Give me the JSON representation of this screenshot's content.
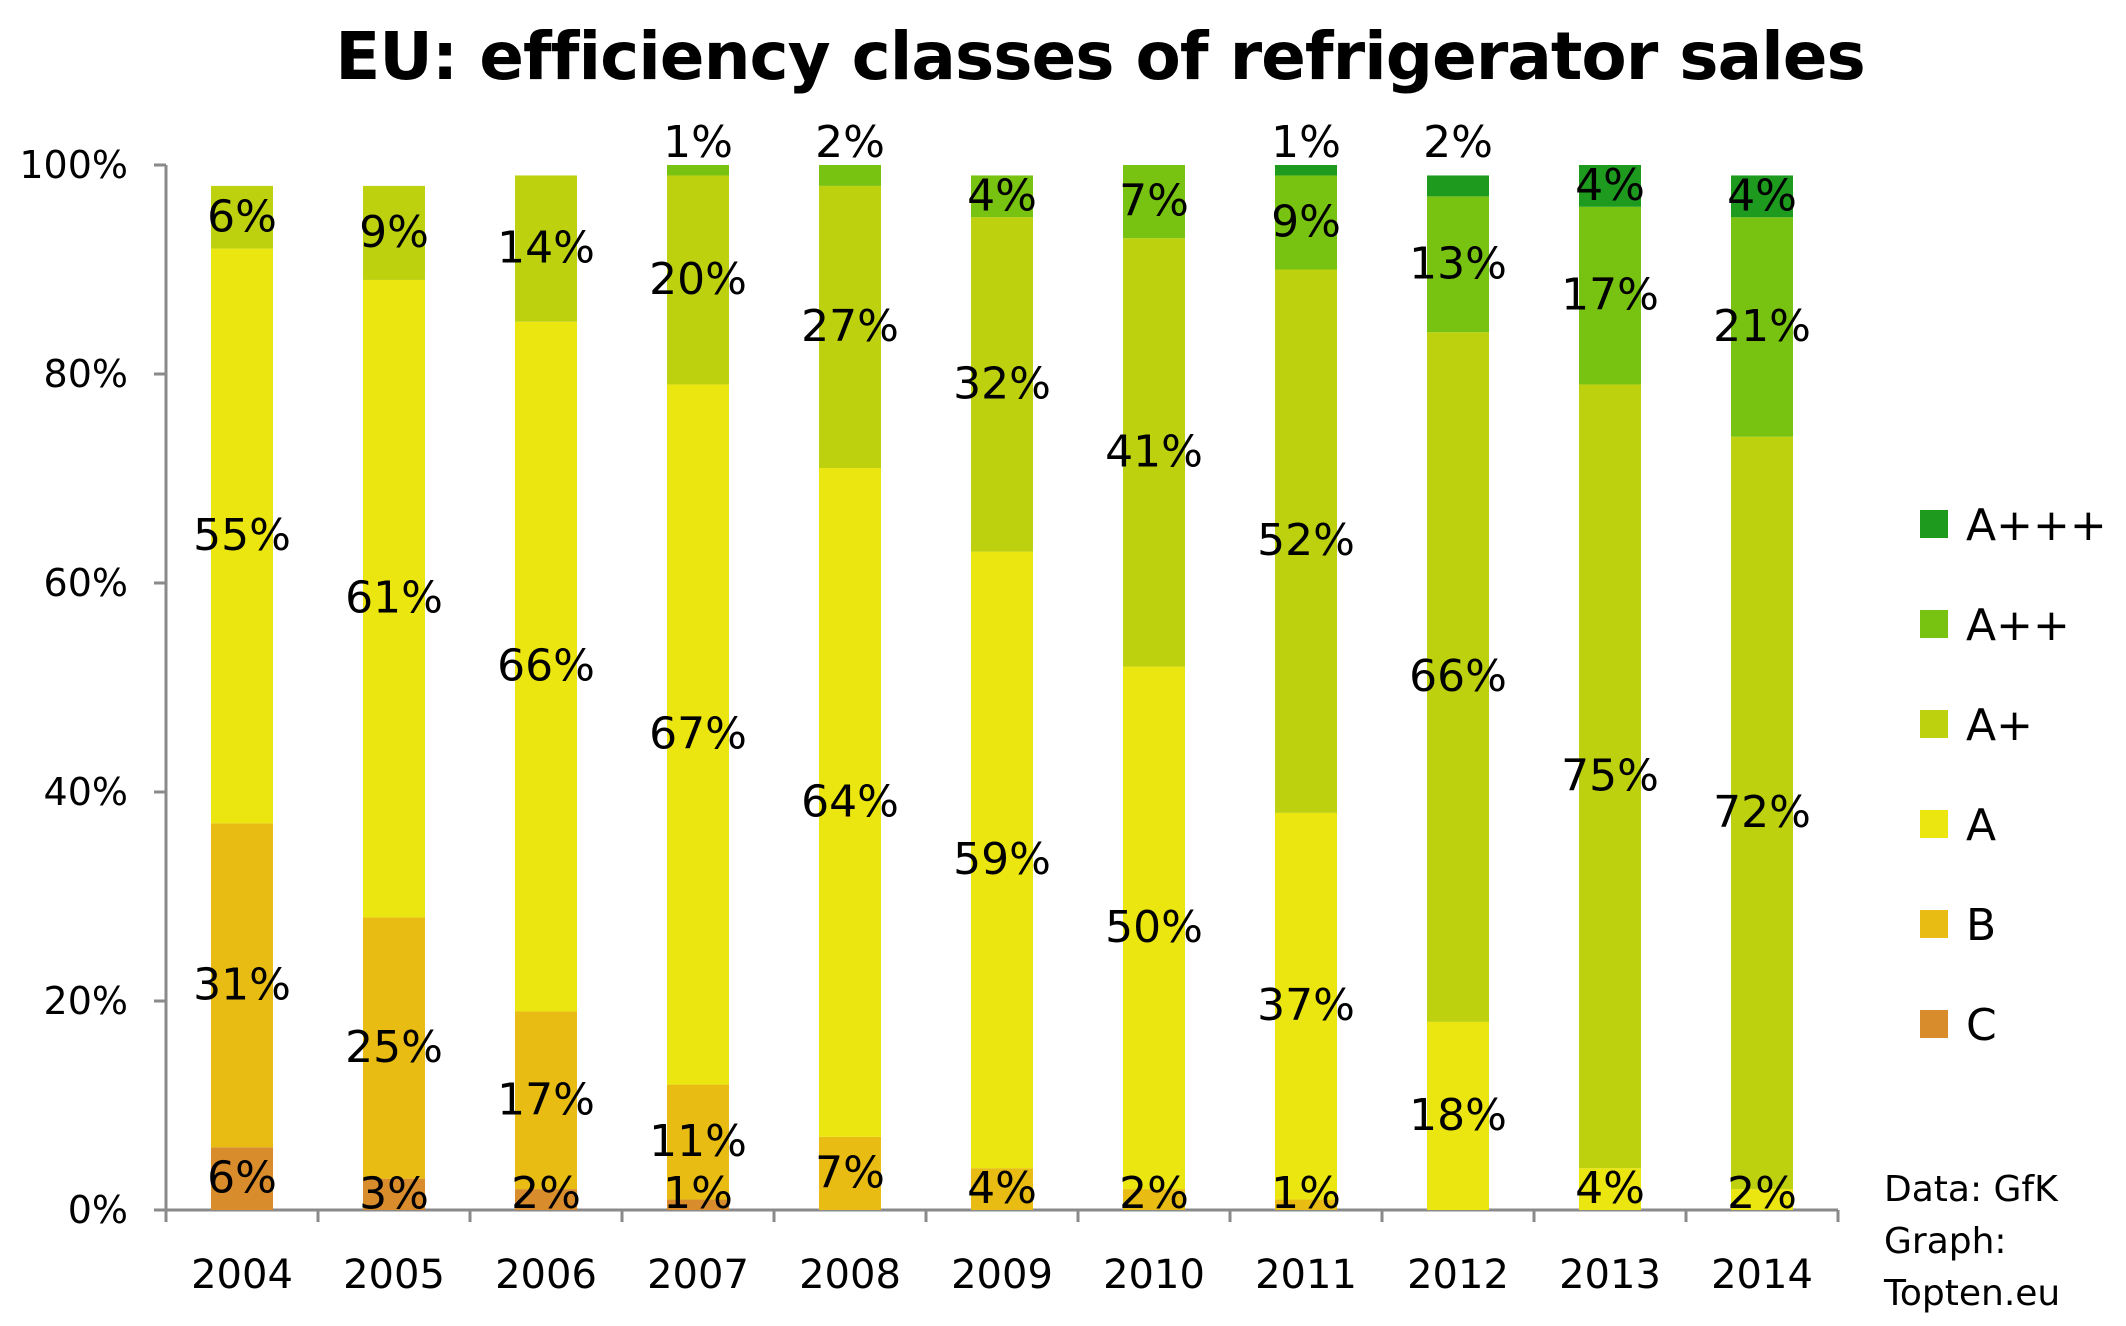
{
  "chart_data": {
    "type": "bar",
    "stacked": true,
    "title": "EU: efficiency classes of refrigerator sales",
    "categories": [
      "2004",
      "2005",
      "2006",
      "2007",
      "2008",
      "2009",
      "2010",
      "2011",
      "2012",
      "2013",
      "2014"
    ],
    "y_ticks": [
      "0%",
      "20%",
      "40%",
      "60%",
      "80%",
      "100%"
    ],
    "ylim": [
      0,
      100
    ],
    "legend_position": "right",
    "series": [
      {
        "name": "C",
        "color": "#D98C2B",
        "values": [
          6,
          3,
          2,
          1,
          0,
          0,
          0,
          0,
          0,
          0,
          0
        ],
        "labels": [
          "6%",
          "3%",
          "2%",
          "1%",
          null,
          null,
          null,
          null,
          null,
          null,
          null
        ]
      },
      {
        "name": "B",
        "color": "#E8BC12",
        "values": [
          31,
          25,
          17,
          11,
          7,
          4,
          2,
          1,
          0,
          0,
          0
        ],
        "labels": [
          "31%",
          "25%",
          "17%",
          "11%",
          "7%",
          "4%",
          "2%",
          "1%",
          null,
          null,
          null
        ]
      },
      {
        "name": "A",
        "color": "#EBE510",
        "values": [
          55,
          61,
          66,
          67,
          64,
          59,
          50,
          37,
          18,
          4,
          2
        ],
        "labels": [
          "55%",
          "61%",
          "66%",
          "67%",
          "64%",
          "59%",
          "50%",
          "37%",
          "18%",
          "4%",
          "2%"
        ]
      },
      {
        "name": "A+",
        "color": "#BDD10F",
        "values": [
          6,
          9,
          14,
          20,
          27,
          32,
          41,
          52,
          66,
          75,
          72
        ],
        "labels": [
          "6%",
          "9%",
          "14%",
          "20%",
          "27%",
          "32%",
          "41%",
          "52%",
          "66%",
          "75%",
          "72%"
        ]
      },
      {
        "name": "A++",
        "color": "#78C211",
        "values": [
          0,
          0,
          0,
          1,
          2,
          4,
          7,
          9,
          13,
          17,
          21
        ],
        "labels": [
          null,
          null,
          null,
          "1%",
          "2%",
          "4%",
          "7%",
          "9%",
          "13%",
          "17%",
          "21%"
        ]
      },
      {
        "name": "A+++",
        "color": "#1E9A1E",
        "values": [
          0,
          0,
          0,
          0,
          0,
          0,
          0,
          1,
          2,
          4,
          4
        ],
        "labels": [
          null,
          null,
          null,
          null,
          null,
          null,
          null,
          "1%",
          "2%",
          "4%",
          "4%"
        ]
      }
    ],
    "legend_order": [
      "A+++",
      "A++",
      "A+",
      "A",
      "B",
      "C"
    ]
  },
  "credit": {
    "line1": "Data: GfK",
    "line2": "Graph:",
    "line3": "Topten.eu"
  }
}
